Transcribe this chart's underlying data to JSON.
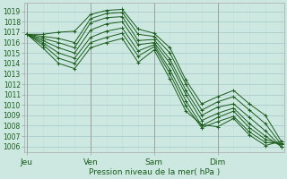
{
  "title": "",
  "xlabel": "Pression niveau de la mer( hPa )",
  "bg_color": "#cce8e0",
  "grid_color_major": "#aacccc",
  "grid_color_minor": "#c0ddd8",
  "line_color": "#1a5c1a",
  "ylim": [
    1005.5,
    1019.8
  ],
  "yticks": [
    1006,
    1007,
    1008,
    1009,
    1010,
    1011,
    1012,
    1013,
    1014,
    1015,
    1016,
    1017,
    1018,
    1019
  ],
  "day_ticks": [
    0,
    24,
    48,
    72
  ],
  "day_labels": [
    "Jeu",
    "Ven",
    "Sam",
    "Dim"
  ],
  "xlim": [
    -1,
    97
  ],
  "figsize": [
    3.2,
    2.0
  ],
  "dpi": 100,
  "lines": [
    {
      "x": [
        0,
        6,
        12,
        18,
        24,
        30,
        36,
        42,
        48,
        54,
        60,
        66,
        72,
        78,
        84,
        90,
        96
      ],
      "y": [
        1016.8,
        1016.8,
        1017.0,
        1017.1,
        1018.7,
        1019.1,
        1019.2,
        1017.3,
        1016.9,
        1015.5,
        1012.4,
        1010.1,
        1010.8,
        1011.4,
        1010.1,
        1009.0,
        1006.5
      ]
    },
    {
      "x": [
        0,
        6,
        12,
        18,
        24,
        30,
        36,
        42,
        48,
        54,
        60,
        66,
        72,
        78,
        84,
        90,
        96
      ],
      "y": [
        1016.8,
        1016.6,
        1016.4,
        1016.0,
        1018.3,
        1018.8,
        1018.9,
        1016.8,
        1016.6,
        1015.0,
        1012.0,
        1009.5,
        1010.3,
        1010.8,
        1009.5,
        1008.2,
        1006.2
      ]
    },
    {
      "x": [
        0,
        6,
        12,
        18,
        24,
        30,
        36,
        42,
        48,
        54,
        60,
        66,
        72,
        78,
        84,
        90,
        96
      ],
      "y": [
        1016.8,
        1016.4,
        1016.0,
        1015.5,
        1017.9,
        1018.4,
        1018.5,
        1016.2,
        1016.3,
        1014.4,
        1011.4,
        1009.0,
        1009.8,
        1010.1,
        1008.8,
        1007.5,
        1006.0
      ]
    },
    {
      "x": [
        0,
        6,
        12,
        18,
        24,
        30,
        36,
        42,
        48,
        54,
        60,
        66,
        72,
        78,
        84,
        90,
        96
      ],
      "y": [
        1016.8,
        1016.2,
        1015.5,
        1015.0,
        1017.2,
        1017.8,
        1018.0,
        1015.8,
        1016.0,
        1014.0,
        1011.0,
        1008.5,
        1009.2,
        1009.7,
        1008.2,
        1007.0,
        1006.0
      ]
    },
    {
      "x": [
        0,
        6,
        12,
        18,
        24,
        30,
        36,
        42,
        48,
        54,
        60,
        66,
        72,
        78,
        84,
        90,
        96
      ],
      "y": [
        1016.8,
        1016.0,
        1015.0,
        1014.5,
        1016.5,
        1017.1,
        1017.4,
        1015.2,
        1015.8,
        1013.4,
        1010.4,
        1008.0,
        1008.8,
        1009.4,
        1007.8,
        1006.7,
        1006.2
      ]
    },
    {
      "x": [
        0,
        6,
        12,
        18,
        24,
        30,
        36,
        42,
        48,
        54,
        60,
        66,
        72,
        78,
        84,
        90,
        96
      ],
      "y": [
        1016.8,
        1015.8,
        1014.5,
        1014.0,
        1016.0,
        1016.5,
        1016.9,
        1014.7,
        1015.6,
        1013.0,
        1009.9,
        1007.8,
        1008.4,
        1008.9,
        1007.4,
        1006.4,
        1006.3
      ]
    },
    {
      "x": [
        0,
        6,
        12,
        18,
        24,
        30,
        36,
        42,
        48,
        54,
        60,
        66,
        72,
        78,
        84,
        90,
        96
      ],
      "y": [
        1016.8,
        1015.5,
        1014.0,
        1013.5,
        1015.5,
        1016.0,
        1016.4,
        1014.1,
        1015.3,
        1012.5,
        1009.4,
        1008.1,
        1007.9,
        1008.7,
        1007.1,
        1006.1,
        1006.5
      ]
    }
  ]
}
